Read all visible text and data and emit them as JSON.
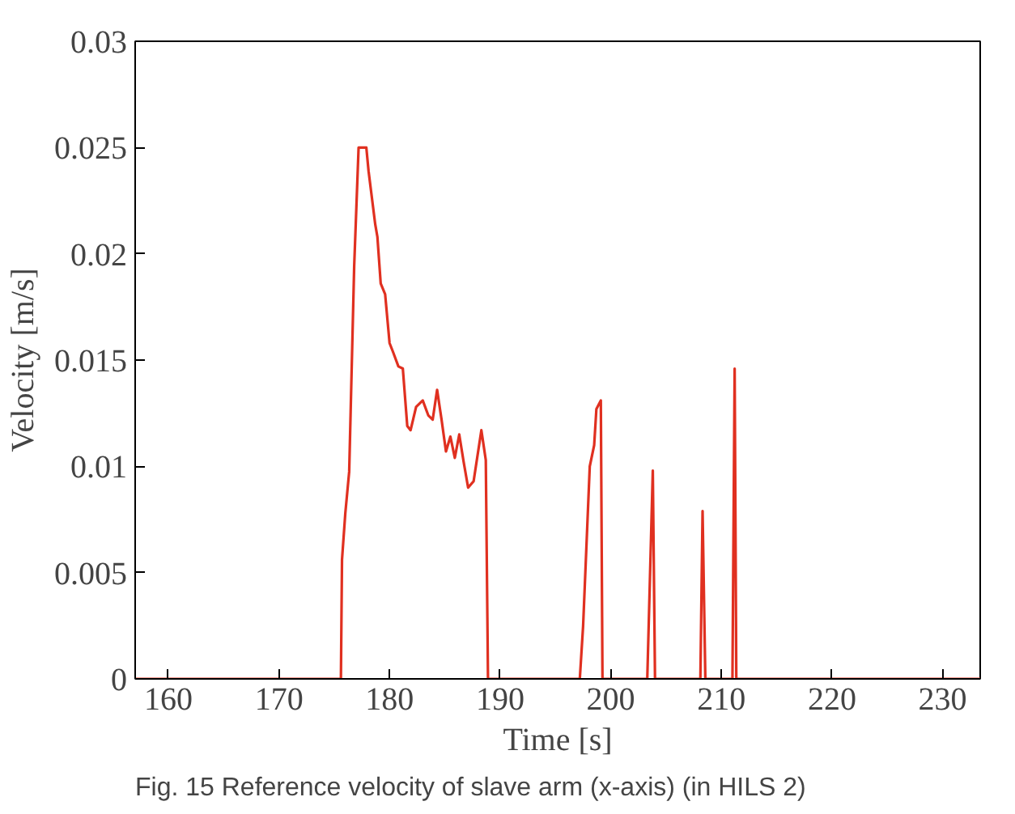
{
  "chart_data": {
    "type": "line",
    "xlabel": "Time [s]",
    "ylabel": "Velocity [m/s]",
    "annotations": [
      "Fig. 15 Reference velocity of slave arm (x-axis) (in HILS 2)"
    ],
    "xlim": [
      157,
      233.4
    ],
    "ylim": [
      0,
      0.03
    ],
    "xticks": [
      160,
      170,
      180,
      190,
      200,
      210,
      220,
      230
    ],
    "yticks": [
      0,
      0.005,
      0.01,
      0.015,
      0.02,
      0.025,
      0.03
    ],
    "grid": false,
    "series": [
      {
        "color": "#e03020",
        "x": [
          157,
          175.6,
          175.7,
          176.0,
          176.35,
          176.8,
          177.2,
          177.9,
          178.1,
          178.7,
          178.9,
          179.2,
          179.6,
          180.0,
          180.3,
          180.8,
          181.2,
          181.6,
          181.9,
          182.4,
          183.0,
          183.5,
          183.9,
          184.3,
          184.7,
          185.1,
          185.5,
          185.9,
          186.3,
          186.7,
          187.1,
          187.6,
          188.3,
          188.7,
          188.9,
          197.2,
          197.5,
          198.1,
          198.5,
          198.7,
          199.1,
          199.25,
          203.3,
          203.8,
          204.0,
          208.1,
          208.3,
          208.55,
          211.0,
          211.2,
          211.35,
          233.4
        ],
        "values": [
          0,
          0,
          0.0056,
          0.0078,
          0.00975,
          0.0194,
          0.025,
          0.025,
          0.0239,
          0.0214,
          0.0208,
          0.0186,
          0.0181,
          0.0158,
          0.0154,
          0.0147,
          0.0146,
          0.0119,
          0.0117,
          0.0128,
          0.0131,
          0.0124,
          0.0122,
          0.0136,
          0.0122,
          0.0107,
          0.0114,
          0.0104,
          0.0115,
          0.0102,
          0.009,
          0.0093,
          0.0117,
          0.0103,
          0,
          0,
          0.0025,
          0.01,
          0.011,
          0.0127,
          0.0131,
          0,
          0,
          0.0098,
          0,
          0,
          0.0079,
          0,
          0,
          0.0146,
          0,
          0
        ]
      }
    ]
  }
}
